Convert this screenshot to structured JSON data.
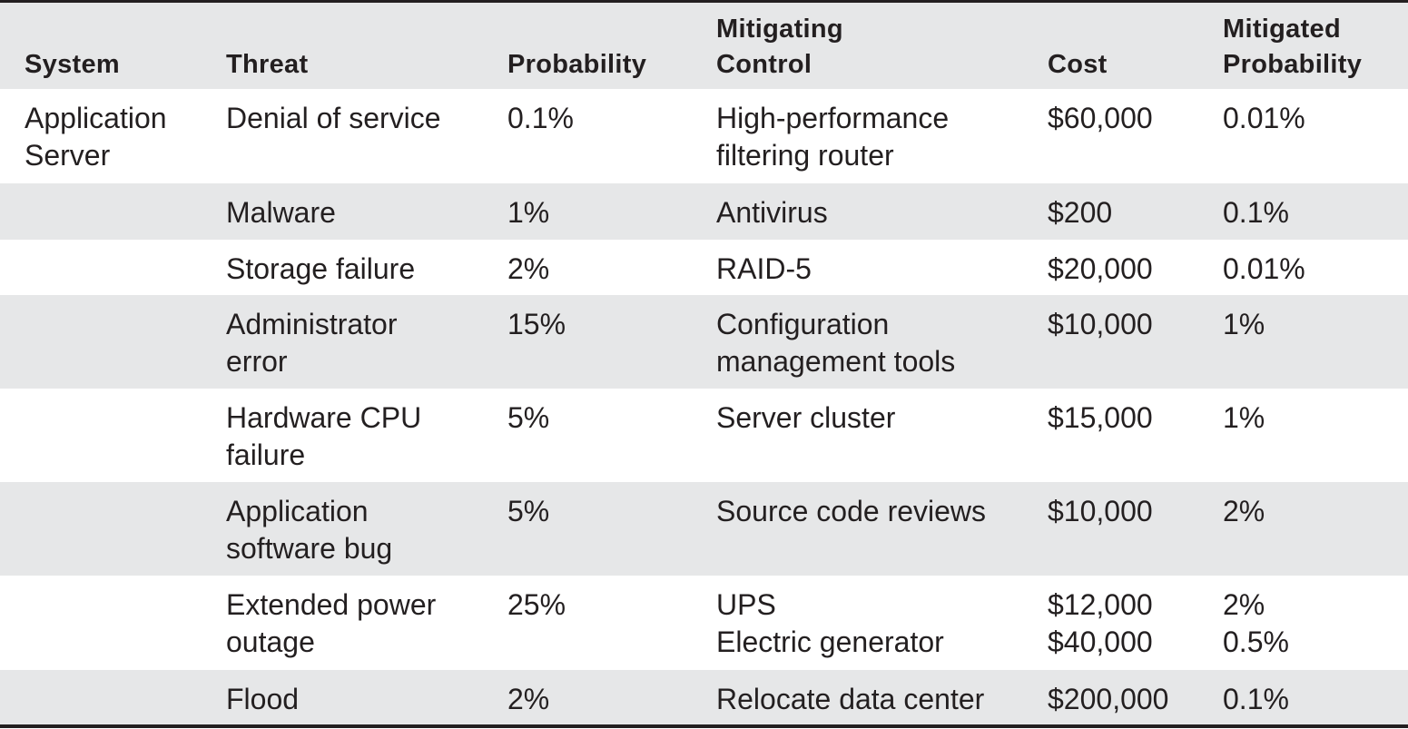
{
  "table": {
    "headers": {
      "system": "System",
      "threat": "Threat",
      "probability": "Probability",
      "mitigating_control": [
        "Mitigating",
        "Control"
      ],
      "cost": "Cost",
      "mitigated_probability": [
        "Mitigated",
        "Probability"
      ]
    },
    "rows": [
      {
        "system": [
          "Application",
          "Server"
        ],
        "threat": [
          "Denial of service"
        ],
        "probability": "0.1%",
        "control": [
          "High-performance",
          "filtering router"
        ],
        "cost": [
          "$60,000"
        ],
        "mitigated": [
          "0.01%"
        ]
      },
      {
        "system": [],
        "threat": [
          "Malware"
        ],
        "probability": "1%",
        "control": [
          "Antivirus"
        ],
        "cost": [
          "$200"
        ],
        "mitigated": [
          "0.1%"
        ]
      },
      {
        "system": [],
        "threat": [
          "Storage failure"
        ],
        "probability": "2%",
        "control": [
          "RAID-5"
        ],
        "cost": [
          "$20,000"
        ],
        "mitigated": [
          "0.01%"
        ]
      },
      {
        "system": [],
        "threat": [
          "Administrator",
          "error"
        ],
        "probability": "15%",
        "control": [
          "Configuration",
          "management tools"
        ],
        "cost": [
          "$10,000"
        ],
        "mitigated": [
          "1%"
        ]
      },
      {
        "system": [],
        "threat": [
          "Hardware CPU",
          "failure"
        ],
        "probability": "5%",
        "control": [
          "Server cluster"
        ],
        "cost": [
          "$15,000"
        ],
        "mitigated": [
          "1%"
        ]
      },
      {
        "system": [],
        "threat": [
          "Application",
          "software bug"
        ],
        "probability": "5%",
        "control": [
          "Source code reviews"
        ],
        "cost": [
          "$10,000"
        ],
        "mitigated": [
          "2%"
        ]
      },
      {
        "system": [],
        "threat": [
          "Extended power",
          "outage"
        ],
        "probability": "25%",
        "control": [
          "UPS",
          "Electric generator"
        ],
        "cost": [
          "$12,000",
          "$40,000"
        ],
        "mitigated": [
          "2%",
          "0.5%"
        ]
      },
      {
        "system": [],
        "threat": [
          "Flood"
        ],
        "probability": "2%",
        "control": [
          "Relocate data center"
        ],
        "cost": [
          "$200,000"
        ],
        "mitigated": [
          "0.1%"
        ]
      }
    ]
  }
}
